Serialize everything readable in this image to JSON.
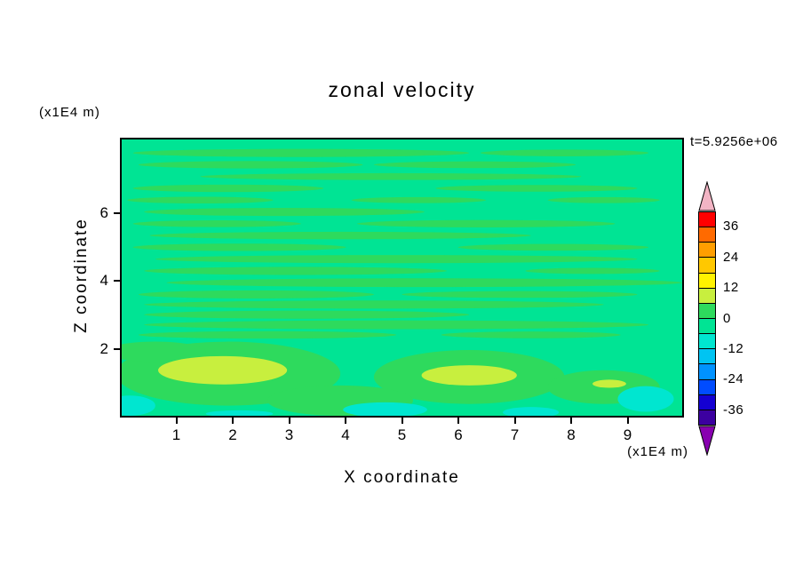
{
  "title": "zonal velocity",
  "timestamp": "t=5.9256e+06",
  "axes": {
    "x_label": "X coordinate",
    "y_label": "Z coordinate",
    "x_unit": "(x1E4 m)",
    "y_unit": "(x1E4 m)",
    "x_tick_values": [
      1,
      2,
      3,
      4,
      5,
      6,
      7,
      8,
      9
    ],
    "y_tick_values": [
      2,
      4,
      6
    ]
  },
  "colorbar": {
    "labels": [
      "36",
      "24",
      "12",
      "0",
      "-12",
      "-24",
      "-36"
    ],
    "arrow_top_color": "#f2b4c4",
    "arrow_bottom_color": "#8800b0",
    "bands": [
      {
        "range": "36 to 42",
        "color": "#ff0000"
      },
      {
        "range": "30 to 36",
        "color": "#ff6a00"
      },
      {
        "range": "24 to 30",
        "color": "#ff9e00"
      },
      {
        "range": "18 to 24",
        "color": "#ffc800"
      },
      {
        "range": "12 to 18",
        "color": "#fff200"
      },
      {
        "range": "6 to 12",
        "color": "#c8ef3e"
      },
      {
        "range": "0 to 6",
        "color": "#2eda5d"
      },
      {
        "range": "-6 to 0",
        "color": "#00e494"
      },
      {
        "range": "-12 to -6",
        "color": "#00e6d0"
      },
      {
        "range": "-18 to -12",
        "color": "#00c4f2"
      },
      {
        "range": "-24 to -18",
        "color": "#0092ff"
      },
      {
        "range": "-30 to -24",
        "color": "#004cff"
      },
      {
        "range": "-36 to -30",
        "color": "#1400d2"
      },
      {
        "range": "-42 to -36",
        "color": "#3c00a0"
      }
    ]
  },
  "chart_data": {
    "type": "contour",
    "title": "zonal velocity",
    "xlabel": "X coordinate (x1E4 m)",
    "ylabel": "Z coordinate (x1E4 m)",
    "time": "t=5.9256e+06",
    "x_range": [
      0,
      10
    ],
    "z_range": [
      0,
      8.2
    ],
    "contour_interval": 6,
    "level_labels": [
      36,
      24,
      12,
      0,
      -12,
      -24,
      -36
    ],
    "base_band": "m1",
    "palette": {
      "p2": "#c8ef3e",
      "p1": "#2eda5d",
      "m1": "#00e494",
      "m2": "#00e6d0"
    },
    "band_values": {
      "p2": "6 to 12",
      "p1": "0 to 6",
      "m1": "-6 to 0",
      "m2": "-12 to -6"
    },
    "features": [
      {
        "b": "p1",
        "x": 1.9,
        "z": 1.25,
        "rx": 2.0,
        "rz": 0.95
      },
      {
        "b": "p1",
        "x": 6.2,
        "z": 1.15,
        "rx": 1.7,
        "rz": 0.8
      },
      {
        "b": "p1",
        "x": 8.6,
        "z": 0.85,
        "rx": 1.0,
        "rz": 0.5
      },
      {
        "b": "p1",
        "x": 3.9,
        "z": 0.45,
        "rx": 1.3,
        "rz": 0.45
      },
      {
        "b": "p1",
        "x": 0.6,
        "z": 1.9,
        "rx": 0.9,
        "rz": 0.3
      },
      {
        "b": "p2",
        "x": 1.8,
        "z": 1.35,
        "rx": 1.15,
        "rz": 0.42
      },
      {
        "b": "p2",
        "x": 6.2,
        "z": 1.2,
        "rx": 0.85,
        "rz": 0.3
      },
      {
        "b": "p2",
        "x": 8.7,
        "z": 0.95,
        "rx": 0.3,
        "rz": 0.12
      },
      {
        "b": "m2",
        "x": 4.7,
        "z": 0.18,
        "rx": 0.75,
        "rz": 0.22
      },
      {
        "b": "m2",
        "x": 7.3,
        "z": 0.1,
        "rx": 0.5,
        "rz": 0.16
      },
      {
        "b": "m2",
        "x": 9.35,
        "z": 0.5,
        "rx": 0.5,
        "rz": 0.38
      },
      {
        "b": "m2",
        "x": 0.15,
        "z": 0.3,
        "rx": 0.45,
        "rz": 0.3
      },
      {
        "b": "m2",
        "x": 2.1,
        "z": 0.06,
        "rx": 0.6,
        "rz": 0.1
      },
      {
        "b": "p1",
        "x": 3.2,
        "z": 7.8,
        "rx": 3.0,
        "rz": 0.12
      },
      {
        "b": "p1",
        "x": 7.9,
        "z": 7.8,
        "rx": 1.5,
        "rz": 0.1
      },
      {
        "b": "p1",
        "x": 2.3,
        "z": 7.45,
        "rx": 2.0,
        "rz": 0.11
      },
      {
        "b": "p1",
        "x": 6.3,
        "z": 7.45,
        "rx": 1.8,
        "rz": 0.1
      },
      {
        "b": "p1",
        "x": 4.8,
        "z": 7.1,
        "rx": 3.4,
        "rz": 0.1
      },
      {
        "b": "p1",
        "x": 1.9,
        "z": 6.75,
        "rx": 1.7,
        "rz": 0.11
      },
      {
        "b": "p1",
        "x": 7.4,
        "z": 6.75,
        "rx": 1.8,
        "rz": 0.1
      },
      {
        "b": "p1",
        "x": 1.4,
        "z": 6.4,
        "rx": 1.3,
        "rz": 0.1
      },
      {
        "b": "p1",
        "x": 5.3,
        "z": 6.4,
        "rx": 1.2,
        "rz": 0.09
      },
      {
        "b": "p1",
        "x": 8.6,
        "z": 6.4,
        "rx": 1.0,
        "rz": 0.09
      },
      {
        "b": "p1",
        "x": 2.9,
        "z": 6.05,
        "rx": 2.5,
        "rz": 0.12
      },
      {
        "b": "p1",
        "x": 1.7,
        "z": 5.7,
        "rx": 1.5,
        "rz": 0.1
      },
      {
        "b": "p1",
        "x": 6.5,
        "z": 5.7,
        "rx": 2.3,
        "rz": 0.11
      },
      {
        "b": "p1",
        "x": 3.9,
        "z": 5.35,
        "rx": 3.4,
        "rz": 0.11
      },
      {
        "b": "p1",
        "x": 2.1,
        "z": 5.0,
        "rx": 1.9,
        "rz": 0.11
      },
      {
        "b": "p1",
        "x": 7.7,
        "z": 5.0,
        "rx": 1.7,
        "rz": 0.1
      },
      {
        "b": "p1",
        "x": 4.9,
        "z": 4.65,
        "rx": 4.3,
        "rz": 0.12
      },
      {
        "b": "p1",
        "x": 3.1,
        "z": 4.3,
        "rx": 2.7,
        "rz": 0.12
      },
      {
        "b": "p1",
        "x": 8.4,
        "z": 4.3,
        "rx": 1.2,
        "rz": 0.09
      },
      {
        "b": "p1",
        "x": 5.4,
        "z": 3.95,
        "rx": 4.6,
        "rz": 0.13
      },
      {
        "b": "p1",
        "x": 2.4,
        "z": 3.6,
        "rx": 2.1,
        "rz": 0.12
      },
      {
        "b": "p1",
        "x": 7.1,
        "z": 3.6,
        "rx": 2.1,
        "rz": 0.1
      },
      {
        "b": "p1",
        "x": 4.5,
        "z": 3.3,
        "rx": 4.1,
        "rz": 0.12
      },
      {
        "b": "p1",
        "x": 3.3,
        "z": 3.0,
        "rx": 2.9,
        "rz": 0.12
      },
      {
        "b": "p1",
        "x": 4.9,
        "z": 2.7,
        "rx": 4.5,
        "rz": 0.13
      },
      {
        "b": "p1",
        "x": 2.6,
        "z": 2.4,
        "rx": 2.3,
        "rz": 0.11
      },
      {
        "b": "p1",
        "x": 7.3,
        "z": 2.4,
        "rx": 1.6,
        "rz": 0.1
      }
    ]
  }
}
